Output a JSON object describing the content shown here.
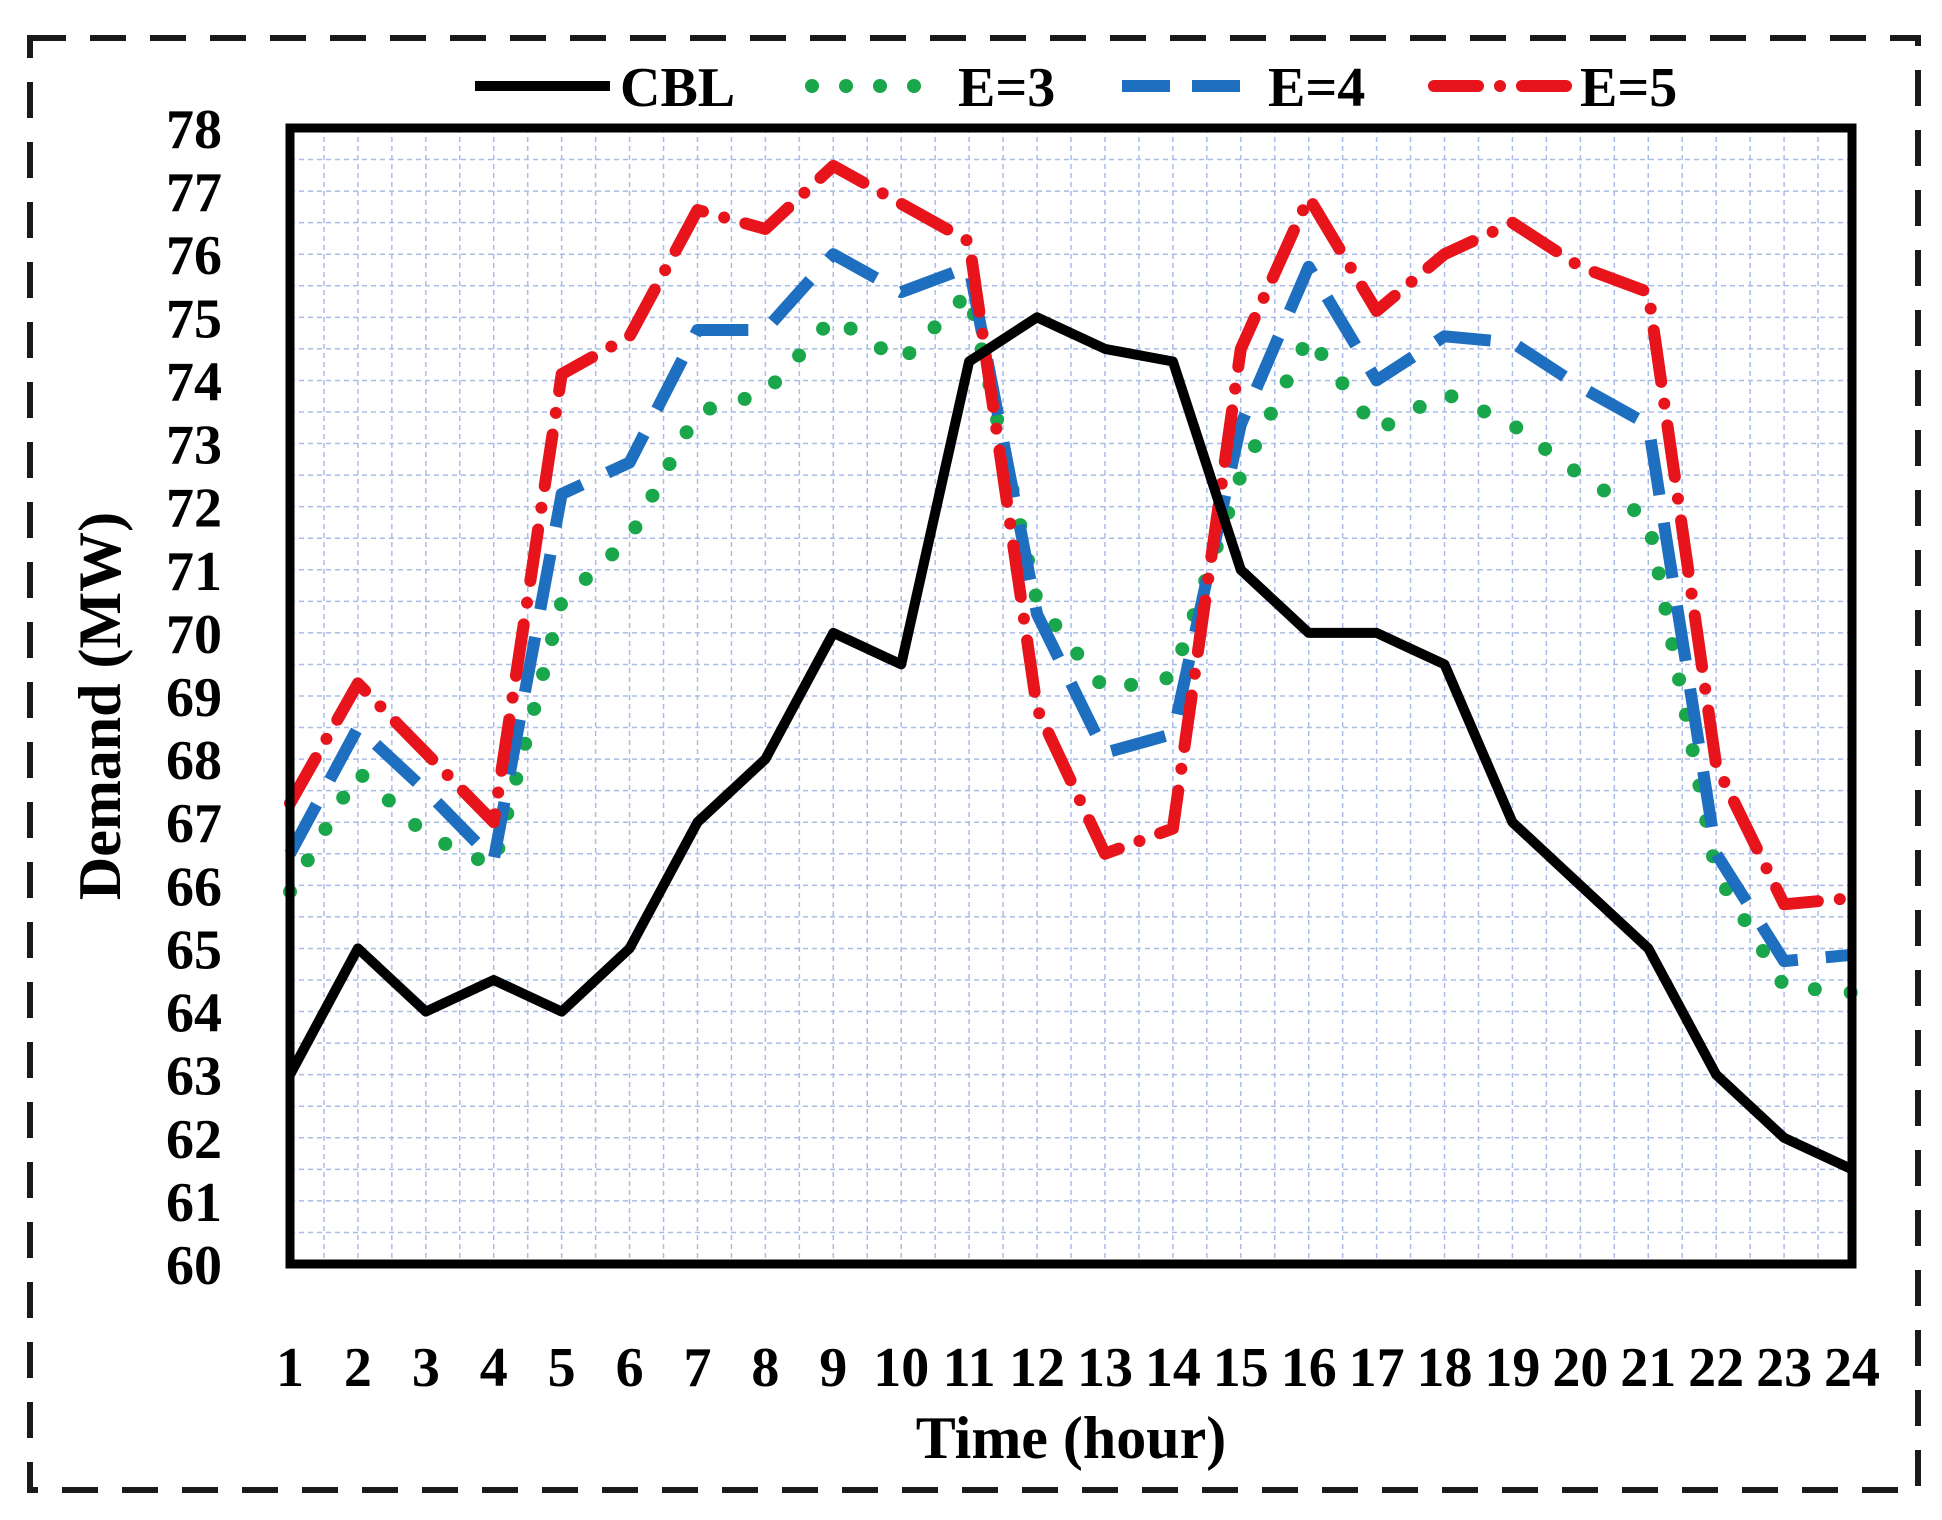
{
  "chart_data": {
    "type": "line",
    "title": "",
    "xlabel": "Time (hour)",
    "ylabel": "Demand (MW)",
    "x": [
      1,
      2,
      3,
      4,
      5,
      6,
      7,
      8,
      9,
      10,
      11,
      12,
      13,
      14,
      15,
      16,
      17,
      18,
      19,
      20,
      21,
      22,
      23,
      24
    ],
    "xlim": [
      1,
      24
    ],
    "ylim": [
      60,
      78
    ],
    "yticks": [
      60,
      61,
      62,
      63,
      64,
      65,
      66,
      67,
      68,
      69,
      70,
      71,
      72,
      73,
      74,
      75,
      76,
      77,
      78
    ],
    "grid": true,
    "legend_position": "top",
    "series": [
      {
        "name": "CBL",
        "style": "solid",
        "color": "#000000",
        "values": [
          63,
          65,
          64,
          64.5,
          64,
          65,
          67,
          68,
          70,
          69.5,
          74.3,
          75,
          74.5,
          74.3,
          71,
          70,
          70,
          69.5,
          67,
          66,
          65,
          63,
          62,
          61.5
        ]
      },
      {
        "name": "E=3",
        "style": "dotted",
        "color": "#1aa64a",
        "values": [
          65.9,
          67.8,
          66.8,
          66.3,
          70.5,
          71.5,
          73.5,
          73.8,
          75,
          74.3,
          75.4,
          70.5,
          69.1,
          69.3,
          72.5,
          74.7,
          73.2,
          73.8,
          73.3,
          72.5,
          71.8,
          66.2,
          64.4,
          64.3
        ]
      },
      {
        "name": "E=4",
        "style": "dashed",
        "color": "#1f6fc0",
        "values": [
          66.5,
          68.5,
          67.5,
          66.4,
          72.2,
          72.7,
          74.8,
          74.8,
          76,
          75.4,
          75.8,
          70.3,
          68.1,
          68.4,
          73.3,
          75.8,
          74,
          74.7,
          74.6,
          73.9,
          73.3,
          66.5,
          64.8,
          64.9
        ]
      },
      {
        "name": "E=5",
        "style": "dashdot",
        "color": "#e8141c",
        "values": [
          67.3,
          69.2,
          68.1,
          67,
          74.1,
          74.7,
          76.7,
          76.4,
          77.4,
          76.8,
          76.2,
          68.8,
          66.5,
          66.9,
          74.5,
          76.9,
          75.1,
          76,
          76.5,
          75.8,
          75.4,
          67.9,
          65.7,
          65.8
        ]
      }
    ]
  }
}
